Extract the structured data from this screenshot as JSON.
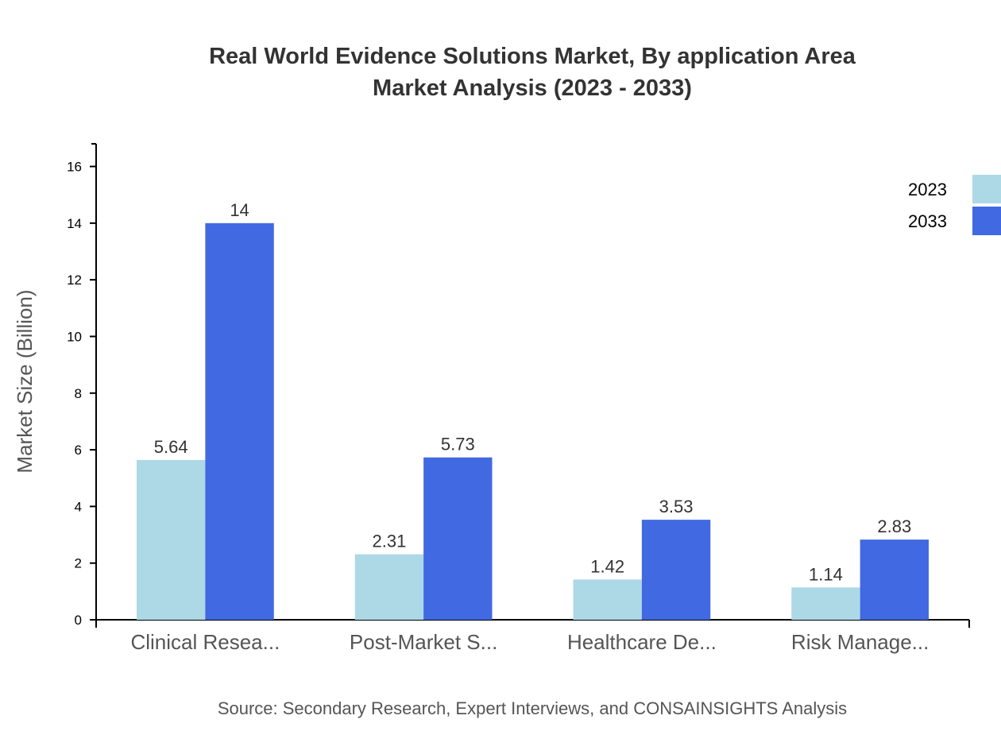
{
  "chart_data": {
    "type": "bar",
    "title": [
      "Real World Evidence Solutions Market, By application Area",
      "Market Analysis (2023 - 2033)"
    ],
    "xlabel": "",
    "ylabel": "Market Size (Billion)",
    "categories": [
      "Clinical Resea...",
      "Post-Market S...",
      "Healthcare De...",
      "Risk Manage..."
    ],
    "series": [
      {
        "name": "2023",
        "color": "#ADD8E6",
        "values": [
          5.64,
          2.31,
          1.42,
          1.14
        ]
      },
      {
        "name": "2033",
        "color": "#4169E1",
        "values": [
          14,
          5.73,
          3.53,
          2.83
        ]
      }
    ],
    "ylim": [
      0,
      16.8
    ],
    "yticks": [
      0,
      2,
      4,
      6,
      8,
      10,
      12,
      14,
      16
    ],
    "grid": false,
    "legend": "top-right",
    "source": "Source: Secondary Research, Expert Interviews, and CONSAINSIGHTS Analysis"
  }
}
